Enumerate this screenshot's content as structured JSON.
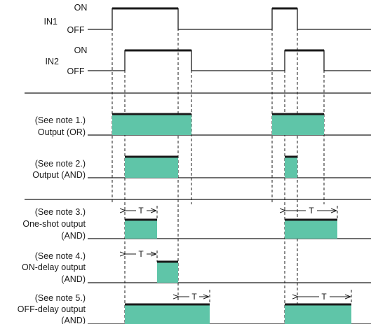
{
  "colors": {
    "line": "#1a1a1a",
    "fill": "#5fc5a8",
    "guide": "#1a1a1a"
  },
  "signals": {
    "in1": {
      "name": "IN1",
      "on": "ON",
      "off": "OFF"
    },
    "in2": {
      "name": "IN2",
      "on": "ON",
      "off": "OFF"
    }
  },
  "outputs": {
    "or": {
      "note": "(See note 1.)",
      "label": "Output (OR)"
    },
    "and": {
      "note": "(See note 2.)",
      "label": "Output (AND)"
    },
    "oneshot": {
      "note": "(See note 3.)",
      "label": "One-shot output",
      "sub": "(AND)"
    },
    "ondelay": {
      "note": "(See note 4.)",
      "label": "ON-delay output",
      "sub": "(AND)"
    },
    "offdelay": {
      "note": "(See note 5.)",
      "label": "OFF-delay output",
      "sub": "(AND)"
    }
  },
  "timer_label": "T"
}
